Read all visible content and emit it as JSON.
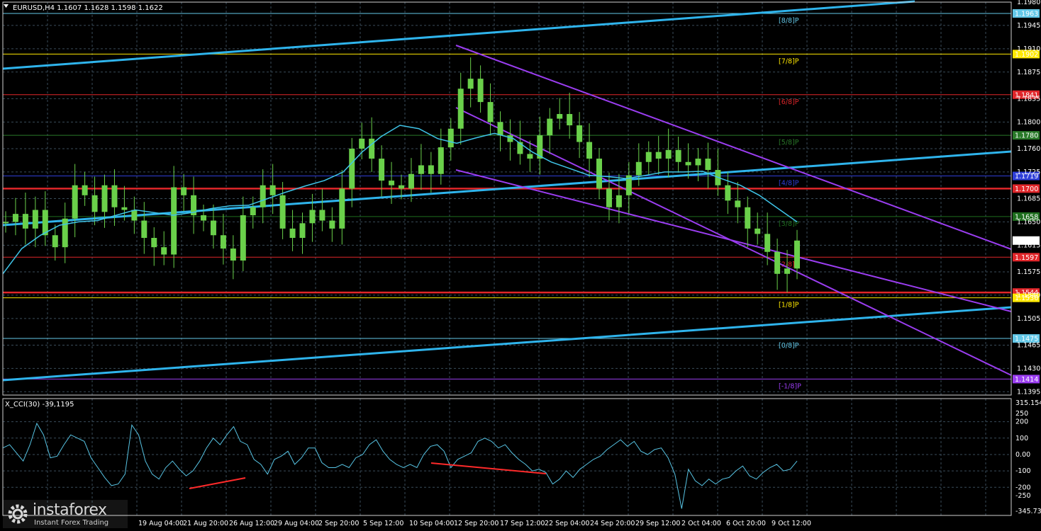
{
  "header": {
    "symbol_line": "EURUSD,H4  1.1607 1.1628 1.1598 1.1622",
    "cci_line": "X_CCI(30) -39,1195"
  },
  "brand": {
    "name": "instaforex",
    "tagline": "Instant Forex Trading"
  },
  "colors": {
    "candle": "#6ad04a",
    "ma": "#3fc4e8",
    "channel": "#9a3df0",
    "trend": "#2fb4ec",
    "cci": "#57c4e4",
    "divergence": "#ff2a2a",
    "grid": "#3a4c5a"
  },
  "chart_data": [
    {
      "type": "candlestick",
      "title": "EURUSD,H4",
      "ohlc_last": {
        "open": 1.1607,
        "high": 1.1628,
        "low": 1.1598,
        "close": 1.1622
      },
      "ylim": [
        1.139,
        1.198
      ],
      "yticks": [
        1.198,
        1.1945,
        1.191,
        1.1875,
        1.1835,
        1.18,
        1.176,
        1.1725,
        1.1685,
        1.165,
        1.1615,
        1.1575,
        1.154,
        1.1505,
        1.1465,
        1.143,
        1.1395
      ],
      "x_labels": [
        "19 Aug 04:00",
        "21 Aug 20:00",
        "26 Aug 12:00",
        "29 Aug 04:00",
        "2 Sep 20:00",
        "5 Sep 12:00",
        "10 Sep 04:00",
        "12 Sep 20:00",
        "17 Sep 12:00",
        "22 Sep 04:00",
        "24 Sep 20:00",
        "29 Sep 12:00",
        "2 Oct 04:00",
        "6 Oct 20:00",
        "9 Oct 12:00"
      ],
      "close_series": [
        1.165,
        1.1662,
        1.164,
        1.1668,
        1.163,
        1.1612,
        1.1655,
        1.1705,
        1.169,
        1.1665,
        1.1705,
        1.1672,
        1.1668,
        1.1652,
        1.1626,
        1.1612,
        1.1601,
        1.1702,
        1.169,
        1.166,
        1.1652,
        1.163,
        1.161,
        1.1592,
        1.166,
        1.1672,
        1.1705,
        1.169,
        1.164,
        1.1626,
        1.1648,
        1.1668,
        1.1652,
        1.164,
        1.17,
        1.176,
        1.1775,
        1.1745,
        1.1712,
        1.1705,
        1.17,
        1.1722,
        1.1735,
        1.1722,
        1.1762,
        1.179,
        1.185,
        1.1865,
        1.183,
        1.18,
        1.178,
        1.177,
        1.1752,
        1.1745,
        1.178,
        1.1805,
        1.1812,
        1.1795,
        1.177,
        1.1745,
        1.17,
        1.1672,
        1.169,
        1.172,
        1.174,
        1.1755,
        1.1745,
        1.1758,
        1.174,
        1.1735,
        1.1745,
        1.1728,
        1.1705,
        1.1682,
        1.1672,
        1.164,
        1.1632,
        1.1605,
        1.1572,
        1.158,
        1.1622
      ],
      "ma_series": [
        1.1572,
        1.161,
        1.163,
        1.1645,
        1.165,
        1.1652,
        1.166,
        1.1668,
        1.1664,
        1.166,
        1.1664,
        1.167,
        1.1674,
        1.1675,
        1.1685,
        1.1695,
        1.1704,
        1.1712,
        1.1725,
        1.1755,
        1.1778,
        1.1795,
        1.179,
        1.1775,
        1.1768,
        1.1776,
        1.1783,
        1.1775,
        1.1755,
        1.174,
        1.173,
        1.172,
        1.1718,
        1.1715,
        1.172,
        1.1725,
        1.1725,
        1.1726,
        1.1715,
        1.1705,
        1.169,
        1.167,
        1.165
      ],
      "murray_levels": [
        {
          "label": "[8/8]P",
          "price": "1.1963",
          "color": "#63c8e8"
        },
        {
          "label": "[7/8]P",
          "price": "1.1902",
          "color": "#ffe800"
        },
        {
          "label": "[6/8]P",
          "price": "1.1841",
          "color": "#e0262a"
        },
        {
          "label": "[5/8]P",
          "price": "1.1780",
          "color": "#2a7a2a"
        },
        {
          "label": "[4/8]P",
          "price": "1.1719",
          "color": "#2f3fd8"
        },
        {
          "label": "",
          "price": "1.1700",
          "color": "#e0262a"
        },
        {
          "label": "[3/8]P",
          "price": "1.1658",
          "color": "#1e6e1e"
        },
        {
          "label": "[2/8]P",
          "price": "1.1597",
          "color": "#e0262a"
        },
        {
          "label": "",
          "price": "1.1544",
          "color": "#e0262a"
        },
        {
          "label": "[1/8]P",
          "price": "1.1536",
          "color": "#ffe800"
        },
        {
          "label": "[0/8]P",
          "price": "1.1475",
          "color": "#63c8e8"
        },
        {
          "label": "[-1/8]P",
          "price": "1.1414",
          "color": "#9a3df0"
        }
      ],
      "current_price": "1.1622"
    },
    {
      "type": "line",
      "title": "X_CCI(30) -39,1195",
      "ylim": [
        -345.7345,
        315.1542
      ],
      "yticks": [
        "315.1542",
        "250",
        "200",
        "100",
        "0.00",
        "-100",
        "-200",
        "-250",
        "-345.7345"
      ],
      "values": [
        40,
        60,
        10,
        -40,
        60,
        190,
        120,
        -20,
        -10,
        60,
        120,
        100,
        80,
        -20,
        -80,
        -140,
        -190,
        -180,
        -120,
        180,
        120,
        -40,
        -120,
        -150,
        -80,
        -40,
        -90,
        -130,
        -100,
        -40,
        40,
        100,
        60,
        120,
        170,
        80,
        60,
        -30,
        -60,
        -120,
        -30,
        -10,
        20,
        -60,
        -20,
        40,
        40,
        -50,
        -80,
        -80,
        -60,
        -80,
        -20,
        0,
        60,
        90,
        20,
        -30,
        -60,
        -80,
        -60,
        -80,
        0,
        50,
        60,
        20,
        -80,
        -30,
        -10,
        10,
        80,
        100,
        80,
        40,
        60,
        10,
        -30,
        -60,
        -100,
        -90,
        -110,
        -180,
        -150,
        -100,
        -140,
        -90,
        -60,
        -30,
        -10,
        30,
        60,
        90,
        50,
        80,
        20,
        0,
        30,
        40,
        -20,
        -120,
        -330,
        -90,
        -160,
        -190,
        -150,
        -180,
        -150,
        -140,
        -100,
        -70,
        -130,
        -150,
        -110,
        -80,
        -60,
        -100,
        -90,
        -40
      ],
      "divergences": [
        {
          "from": [
            267,
            690
          ],
          "to": [
            346,
            675
          ]
        },
        {
          "from": [
            608,
            654
          ],
          "to": [
            770,
            669
          ]
        }
      ]
    }
  ]
}
